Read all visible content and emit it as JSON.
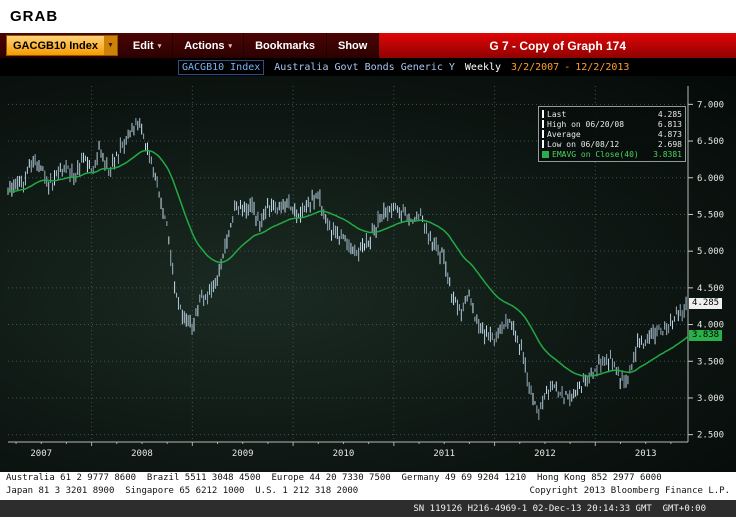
{
  "window": {
    "title": "GRAB"
  },
  "icons": {
    "dropdown_arrow": "▼",
    "menu_arrow": "▾"
  },
  "toolbar": {
    "ticker": "GACGB10 Index",
    "menus": [
      {
        "label": "Edit"
      },
      {
        "label": "Actions"
      },
      {
        "label": "Bookmarks"
      },
      {
        "label": "Show"
      }
    ],
    "title": "G 7 - Copy of Graph 174"
  },
  "subheader": {
    "ticker": "GACGB10 Index",
    "description": "Australia Govt Bonds Generic Y",
    "period": "Weekly",
    "range_start": "3/2/2007",
    "range_sep": "-",
    "range_end": "12/2/2013"
  },
  "legend": {
    "rows": [
      {
        "label": "Last",
        "value": "4.285"
      },
      {
        "label": "High on 06/20/08",
        "value": "6.813"
      },
      {
        "label": "Average",
        "value": "4.873"
      },
      {
        "label": "Low on 06/08/12",
        "value": "2.698"
      },
      {
        "label": "EMAVG on Close(40)",
        "value": "3.8381"
      }
    ]
  },
  "price_tags": {
    "last": "4.285",
    "emavg": "3.838"
  },
  "chart_data": {
    "type": "candlestick",
    "title": "G 7 - Copy of Graph 174",
    "security": "GACGB10 Index",
    "description": "Australia Govt Bonds Generic Y",
    "frequency": "Weekly",
    "date_range": [
      "3/2/2007",
      "12/2/2013"
    ],
    "grid": true,
    "legend_position": "top-right",
    "xlim": [
      2007.17,
      2013.92
    ],
    "ylim": [
      2.4,
      7.25
    ],
    "y_ticks": [
      "7.000",
      "6.500",
      "6.000",
      "5.500",
      "5.000",
      "4.500",
      "4.000",
      "3.500",
      "3.000",
      "2.500"
    ],
    "x_ticks": [
      "2007",
      "2008",
      "2009",
      "2010",
      "2011",
      "2012",
      "2013"
    ],
    "stats": {
      "last": 4.285,
      "high": 6.813,
      "high_date": "06/20/08",
      "high_x": 2008.47,
      "average": 4.873,
      "low": 2.698,
      "low_date": "06/08/12",
      "low_x": 2012.44,
      "emavg": 3.8381
    },
    "series": [
      {
        "name": "GACGB10 Index weekly yield (high-low bars)",
        "color": "#c3d3e3",
        "x": [
          2007.17,
          2007.25,
          2007.33,
          2007.42,
          2007.5,
          2007.58,
          2007.67,
          2007.75,
          2007.83,
          2007.92,
          2008.0,
          2008.08,
          2008.17,
          2008.25,
          2008.33,
          2008.47,
          2008.55,
          2008.63,
          2008.67,
          2008.75,
          2008.83,
          2008.92,
          2009.0,
          2009.08,
          2009.17,
          2009.25,
          2009.33,
          2009.42,
          2009.5,
          2009.58,
          2009.67,
          2009.75,
          2009.83,
          2009.92,
          2010.0,
          2010.08,
          2010.17,
          2010.25,
          2010.33,
          2010.42,
          2010.5,
          2010.58,
          2010.67,
          2010.75,
          2010.83,
          2010.92,
          2011.0,
          2011.08,
          2011.17,
          2011.25,
          2011.33,
          2011.42,
          2011.5,
          2011.58,
          2011.67,
          2011.75,
          2011.83,
          2011.92,
          2012.0,
          2012.08,
          2012.17,
          2012.25,
          2012.33,
          2012.44,
          2012.5,
          2012.58,
          2012.67,
          2012.75,
          2012.83,
          2012.92,
          2013.0,
          2013.08,
          2013.17,
          2013.25,
          2013.33,
          2013.42,
          2013.5,
          2013.58,
          2013.67,
          2013.75,
          2013.83,
          2013.92
        ],
        "values": [
          5.8,
          5.9,
          5.95,
          6.25,
          6.1,
          5.9,
          6.05,
          6.15,
          6.0,
          6.3,
          6.1,
          6.4,
          6.1,
          6.3,
          6.5,
          6.75,
          6.4,
          6.0,
          5.8,
          5.3,
          4.45,
          4.05,
          3.95,
          4.35,
          4.45,
          4.6,
          5.1,
          5.55,
          5.55,
          5.6,
          5.4,
          5.65,
          5.55,
          5.7,
          5.55,
          5.5,
          5.7,
          5.75,
          5.4,
          5.25,
          5.15,
          4.95,
          5.05,
          5.15,
          5.35,
          5.55,
          5.55,
          5.55,
          5.45,
          5.5,
          5.25,
          5.1,
          4.9,
          4.35,
          4.2,
          4.4,
          4.0,
          3.85,
          3.8,
          4.0,
          4.05,
          3.75,
          3.25,
          2.8,
          3.0,
          3.2,
          3.0,
          3.05,
          3.15,
          3.25,
          3.4,
          3.5,
          3.5,
          3.25,
          3.3,
          3.75,
          3.7,
          3.9,
          3.95,
          4.0,
          4.15,
          4.285
        ]
      },
      {
        "name": "EMAVG on Close(40)",
        "color": "#22aa44",
        "period": 40
      }
    ]
  },
  "footer": {
    "line1": "Australia 61 2 9777 8600  Brazil 5511 3048 4500  Europe 44 20 7330 7500  Germany 49 69 9204 1210  Hong Kong 852 2977 6000",
    "line2_left": "Japan 81 3 3201 8900  Singapore 65 6212 1000  U.S. 1 212 318 2000",
    "line2_right": "Copyright 2013 Bloomberg Finance L.P.",
    "status": "SN 119126 H216-4969-1 02-Dec-13 20:14:33 GMT  GMT+0:00"
  }
}
